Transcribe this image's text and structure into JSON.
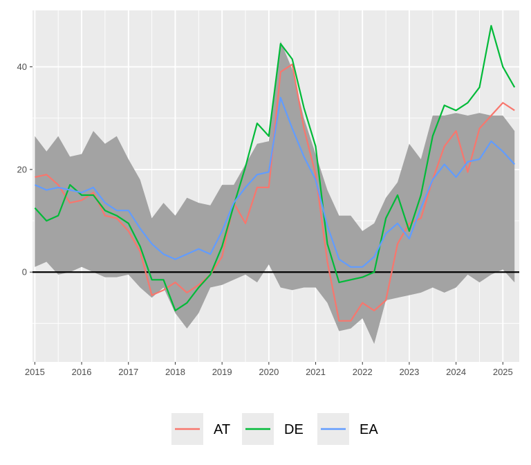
{
  "chart_data": {
    "type": "line",
    "title": "",
    "xlabel": "",
    "ylabel": "",
    "xlim": [
      2014.95,
      2025.35
    ],
    "ylim": [
      -17.5,
      51
    ],
    "x_ticks": [
      2015,
      2016,
      2017,
      2018,
      2019,
      2020,
      2021,
      2022,
      2023,
      2024,
      2025
    ],
    "x_tick_labels": [
      "2015",
      "2016",
      "2017",
      "2018",
      "2019",
      "2020",
      "2021",
      "2022",
      "2023",
      "2024",
      "2025"
    ],
    "y_ticks": [
      0,
      20,
      40
    ],
    "y_tick_labels": [
      "0",
      "20",
      "40"
    ],
    "grid": true,
    "legend_position": "bottom",
    "horizontal_line_y": 0,
    "x": [
      2015.0,
      2015.25,
      2015.5,
      2015.75,
      2016.0,
      2016.25,
      2016.5,
      2016.75,
      2017.0,
      2017.25,
      2017.5,
      2017.75,
      2018.0,
      2018.25,
      2018.5,
      2018.75,
      2019.0,
      2019.25,
      2019.5,
      2019.75,
      2020.0,
      2020.25,
      2020.5,
      2020.75,
      2021.0,
      2021.25,
      2021.5,
      2021.75,
      2022.0,
      2022.25,
      2022.5,
      2022.75,
      2023.0,
      2023.25,
      2023.5,
      2023.75,
      2024.0,
      2024.25,
      2024.5,
      2024.75,
      2025.0,
      2025.25
    ],
    "band": {
      "color": "#a3a3a3",
      "upper": [
        26.5,
        23.5,
        26.5,
        22.5,
        23.0,
        27.5,
        25.0,
        26.5,
        22.0,
        18.0,
        10.5,
        13.5,
        11.0,
        14.5,
        13.5,
        13.0,
        17.0,
        17.0,
        21.0,
        25.0,
        25.5,
        45.0,
        39.5,
        30.0,
        23.0,
        16.0,
        11.0,
        11.0,
        8.0,
        9.5,
        14.5,
        17.5,
        25.0,
        22.0,
        30.5,
        30.5,
        31.0,
        30.5,
        31.0,
        30.5,
        30.5,
        27.5
      ],
      "lower": [
        1.0,
        2.0,
        -0.5,
        0.0,
        1.0,
        0.0,
        -1.0,
        -1.0,
        -0.5,
        -3.0,
        -5.0,
        -3.0,
        -8.0,
        -11.0,
        -8.0,
        -3.0,
        -2.5,
        -1.5,
        -0.5,
        -2.0,
        1.5,
        -3.0,
        -3.5,
        -3.0,
        -3.0,
        -6.0,
        -11.5,
        -11.0,
        -9.0,
        -14.0,
        -5.5,
        -5.0,
        -4.5,
        -4.0,
        -3.0,
        -4.0,
        -3.0,
        -0.5,
        -2.0,
        -0.5,
        0.5,
        -2.0
      ]
    },
    "series": [
      {
        "name": "AT",
        "color": "#f8766d",
        "values": [
          18.5,
          19.0,
          17.0,
          13.5,
          14.0,
          15.5,
          11.0,
          10.5,
          8.0,
          4.0,
          -4.5,
          -3.5,
          -2.0,
          -4.0,
          -2.5,
          -0.5,
          3.0,
          13.5,
          9.5,
          16.5,
          16.5,
          39.0,
          40.5,
          28.0,
          19.0,
          2.0,
          -9.5,
          -9.5,
          -6.0,
          -7.5,
          -5.5,
          5.5,
          9.5,
          10.5,
          18.0,
          24.5,
          27.5,
          19.5,
          28.0,
          30.5,
          33.0,
          31.5
        ]
      },
      {
        "name": "DE",
        "color": "#00ba38",
        "values": [
          12.5,
          10.0,
          11.0,
          17.0,
          15.0,
          15.0,
          12.0,
          11.0,
          9.5,
          5.0,
          -1.5,
          -1.5,
          -7.5,
          -6.0,
          -3.0,
          -0.5,
          5.0,
          13.0,
          20.5,
          29.0,
          26.5,
          44.5,
          41.5,
          32.0,
          24.5,
          5.5,
          -2.0,
          -1.5,
          -1.0,
          0.0,
          10.5,
          15.0,
          8.0,
          15.0,
          26.5,
          32.5,
          31.5,
          33.0,
          36.0,
          48.0,
          40.0,
          36.0
        ]
      },
      {
        "name": "EA",
        "color": "#619cff",
        "values": [
          17.0,
          16.0,
          16.5,
          16.0,
          15.5,
          16.5,
          13.5,
          12.0,
          12.0,
          8.5,
          5.5,
          3.5,
          2.5,
          3.5,
          4.5,
          3.5,
          8.0,
          13.5,
          16.5,
          19.0,
          19.5,
          34.0,
          28.0,
          22.5,
          18.0,
          9.0,
          2.5,
          1.0,
          1.0,
          3.0,
          7.5,
          9.5,
          6.5,
          12.5,
          18.0,
          21.0,
          18.5,
          21.5,
          22.0,
          25.5,
          23.5,
          21.0
        ]
      }
    ]
  }
}
